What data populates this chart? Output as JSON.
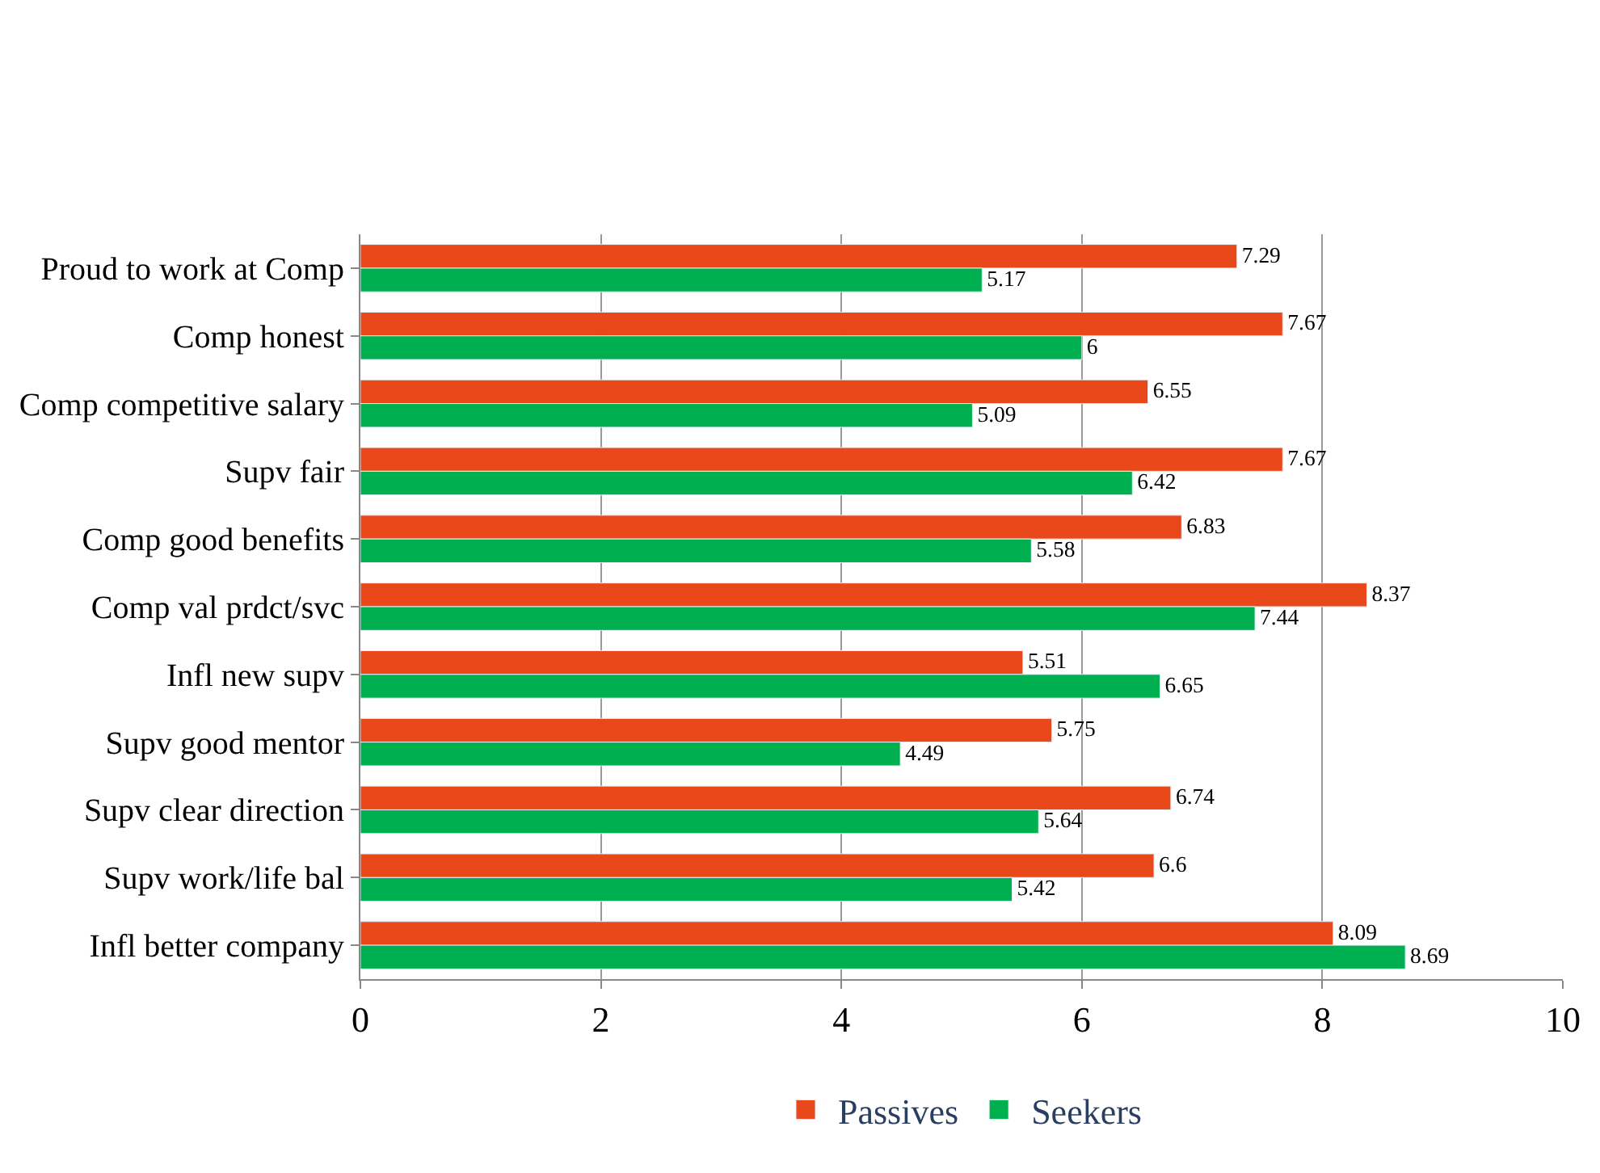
{
  "chart_data": {
    "type": "bar",
    "orientation": "horizontal",
    "categories": [
      "Proud to work at Comp",
      "Comp honest",
      "Comp competitive salary",
      "Supv fair",
      "Comp good benefits",
      "Comp val prdct/svc",
      "Infl new supv",
      "Supv good mentor",
      "Supv clear direction",
      "Supv work/life bal",
      "Infl better company"
    ],
    "series": [
      {
        "name": "Passives",
        "color": "#e8481a",
        "values": [
          7.29,
          7.67,
          6.55,
          7.67,
          6.83,
          8.37,
          5.51,
          5.75,
          6.74,
          6.6,
          8.09
        ]
      },
      {
        "name": "Seekers",
        "color": "#00b050",
        "values": [
          5.17,
          6,
          5.09,
          6.42,
          5.58,
          7.44,
          6.65,
          4.49,
          5.64,
          5.42,
          8.69
        ]
      }
    ],
    "xlim": [
      0,
      10
    ],
    "xticks": [
      0,
      2,
      4,
      6,
      8,
      10
    ],
    "grid": "x",
    "legend": "bottom",
    "data_labels": true
  }
}
